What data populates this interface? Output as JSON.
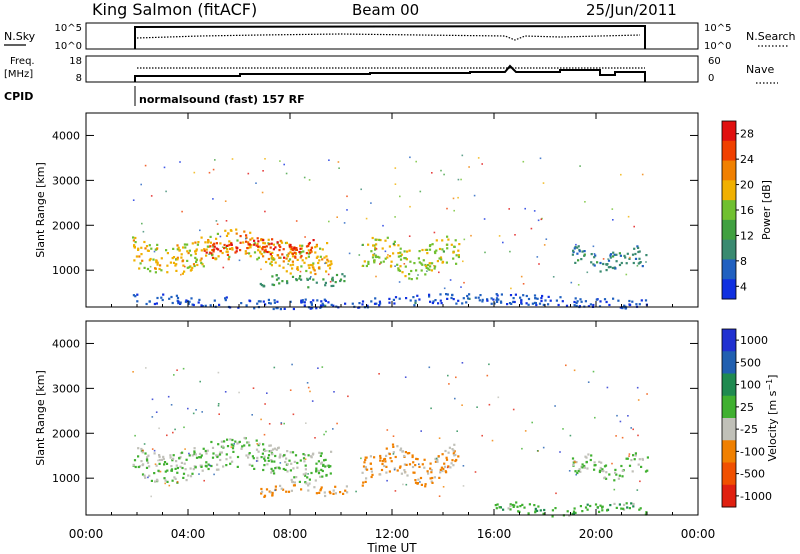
{
  "header": {
    "station": "King Salmon (fitACF)",
    "beam": "Beam 00",
    "date": "25/Jun/2011"
  },
  "noise_panel": {
    "left_label": "N.Sky",
    "right_label": "N.Search",
    "left_ticks": [
      "10^5",
      "10^0"
    ],
    "right_ticks": [
      "10^5",
      "10^0"
    ]
  },
  "freq_panel": {
    "left_label_line1": "Freq.",
    "left_label_line2": "[MHz]",
    "right_label": "Nave",
    "left_ticks": [
      "18",
      "8"
    ],
    "right_ticks": [
      "60",
      "0"
    ]
  },
  "cpid": {
    "label": "CPID",
    "mode": "normalsound (fast) 157 RF"
  },
  "colors": {
    "power": [
      "#1030e0",
      "#2060c0",
      "#3a8a70",
      "#40a040",
      "#70c030",
      "#f0b000",
      "#f08000",
      "#f04000",
      "#e01010"
    ],
    "velocity": [
      "#2030d0",
      "#205fb0",
      "#1f8a50",
      "#40b030",
      "#c0c0b8",
      "#f08000",
      "#f05000",
      "#e02010"
    ]
  },
  "chart_data": [
    {
      "type": "heatmap",
      "title": "Power",
      "ylabel": "Slant Range [km]",
      "xlabel": "",
      "x_ticks": [
        "00:00",
        "04:00",
        "08:00",
        "12:00",
        "16:00",
        "20:00",
        "00:00"
      ],
      "y_ticks": [
        "1000",
        "2000",
        "3000",
        "4000"
      ],
      "ylim": [
        180,
        4500
      ],
      "xlim_hours": [
        0,
        24
      ],
      "colorbar_label": "Power [dB]",
      "colorbar_ticks": [
        "28",
        "24",
        "20",
        "16",
        "12",
        "8",
        "4"
      ],
      "colorbar_range": [
        0,
        30
      ],
      "echo_regions": [
        {
          "t_start": 1.8,
          "t_end": 9.6,
          "range_low": 1050,
          "range_high": 1800,
          "level": 18
        },
        {
          "t_start": 4.6,
          "t_end": 9.0,
          "range_low": 1350,
          "range_high": 1750,
          "level": 26
        },
        {
          "t_start": 6.8,
          "t_end": 10.2,
          "range_low": 650,
          "range_high": 900,
          "level": 10
        },
        {
          "t_start": 10.8,
          "t_end": 14.6,
          "range_low": 950,
          "range_high": 1650,
          "level": 16
        },
        {
          "t_start": 19.0,
          "t_end": 22.0,
          "range_low": 1050,
          "range_high": 1500,
          "level": 8
        },
        {
          "t_start": 1.8,
          "t_end": 22.0,
          "range_low": 200,
          "range_high": 450,
          "level": 4
        }
      ]
    },
    {
      "type": "heatmap",
      "title": "Velocity",
      "ylabel": "Slant Range [km]",
      "xlabel": "Time UT",
      "x_ticks": [
        "00:00",
        "04:00",
        "08:00",
        "12:00",
        "16:00",
        "20:00",
        "00:00"
      ],
      "y_ticks": [
        "1000",
        "2000",
        "3000",
        "4000"
      ],
      "ylim": [
        180,
        4500
      ],
      "xlim_hours": [
        0,
        24
      ],
      "colorbar_label": "Velocity [m s^-1]",
      "colorbar_ticks": [
        "1000",
        "500",
        "100",
        "25",
        "-25",
        "-100",
        "-500",
        "-1000"
      ],
      "colorbar_range": [
        -1000,
        1000
      ],
      "echo_regions": [
        {
          "t_start": 1.8,
          "t_end": 9.6,
          "range_low": 1050,
          "range_high": 1800,
          "level": 0
        },
        {
          "t_start": 6.8,
          "t_end": 10.2,
          "range_low": 650,
          "range_high": 900,
          "level": -300
        },
        {
          "t_start": 10.8,
          "t_end": 14.6,
          "range_low": 950,
          "range_high": 1650,
          "level": -300
        },
        {
          "t_start": 19.0,
          "t_end": 22.0,
          "range_low": 1050,
          "range_high": 1500,
          "level": 0
        },
        {
          "t_start": 16.0,
          "t_end": 22.0,
          "range_low": 200,
          "range_high": 450,
          "level": 150
        }
      ]
    }
  ]
}
